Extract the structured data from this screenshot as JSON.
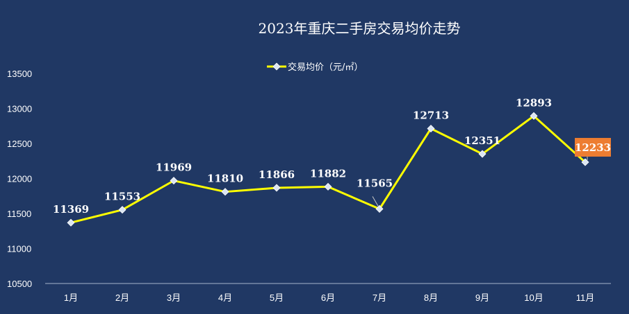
{
  "chart_data": {
    "type": "line",
    "title": "2023年重庆二手房交易均价走势",
    "categories": [
      "1月",
      "2月",
      "3月",
      "4月",
      "5月",
      "6月",
      "7月",
      "8月",
      "9月",
      "10月",
      "11月"
    ],
    "series": [
      {
        "name": "交易均价（元/㎡）",
        "values": [
          11369,
          11553,
          11969,
          11810,
          11866,
          11882,
          11565,
          12713,
          12351,
          12893,
          12233
        ]
      }
    ],
    "ylim": [
      10500,
      13500
    ],
    "yticks": [
      10500,
      11000,
      11500,
      12000,
      12500,
      13000,
      13500
    ],
    "grid": false,
    "legend_position": "top-center",
    "highlight_last_label": true
  },
  "colors": {
    "background": "#203864",
    "line": "#FFFF00",
    "marker": "#DCE6F2",
    "text": "#FFFFFF",
    "axis": "#A6B4CC",
    "highlight_label": "#ED7D31"
  }
}
